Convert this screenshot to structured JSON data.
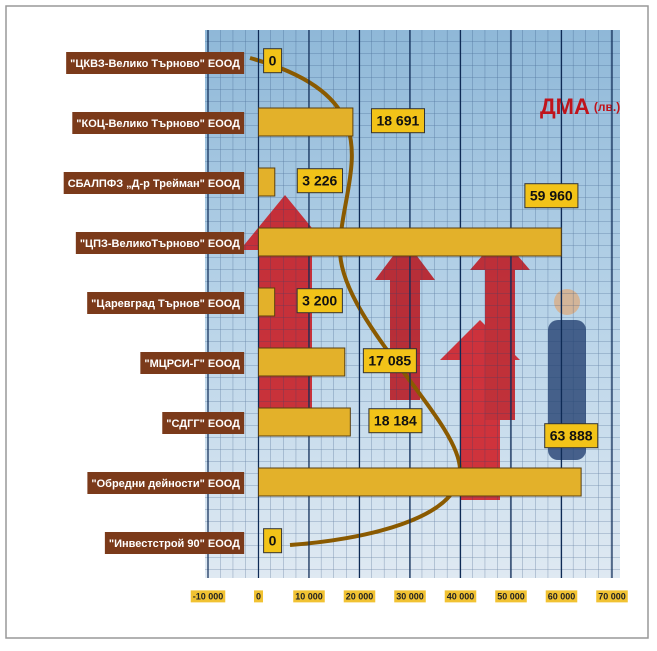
{
  "chart_data": {
    "type": "bar",
    "orientation": "horizontal",
    "annotation": {
      "main": "ДМА",
      "unit": "(лв.)"
    },
    "categories": [
      "\"ЦКВЗ-Велико Търново\" ЕООД",
      "\"КОЦ-Велико Търново\" ЕООД",
      "СБАЛПФЗ „Д-р Трейман\" ЕООД",
      "\"ЦПЗ-ВеликоТърново\" ЕООД",
      "\"Царевград Търнов\" ЕООД",
      "\"МЦРСИ-Г\" ЕООД",
      "\"СДГГ\" ЕООД",
      "\"Обредни дейности\" ЕООД",
      "\"Инвестстрой 90\" ЕООД"
    ],
    "values": [
      0,
      18691,
      3226,
      59960,
      3200,
      17085,
      18184,
      63888,
      0
    ],
    "value_labels": [
      "0",
      "18 691",
      "3 226",
      "59 960",
      "3 200",
      "17 085",
      "18 184",
      "63 888",
      "0"
    ],
    "color": "#e3b12a",
    "xlim": [
      -10000,
      70000
    ],
    "xticks": [
      {
        "value": -10000,
        "label": "-10 000"
      },
      0,
      {
        "value": 10000,
        "label": "10 000"
      },
      {
        "value": 20000,
        "label": "20 000"
      },
      {
        "value": 30000,
        "label": "30 000"
      },
      {
        "value": 40000,
        "label": "40 000"
      },
      {
        "value": 50000,
        "label": "50 000"
      },
      {
        "value": 60000,
        "label": "60 000"
      },
      {
        "value": 70000,
        "label": "70 000"
      }
    ],
    "grid": true
  }
}
